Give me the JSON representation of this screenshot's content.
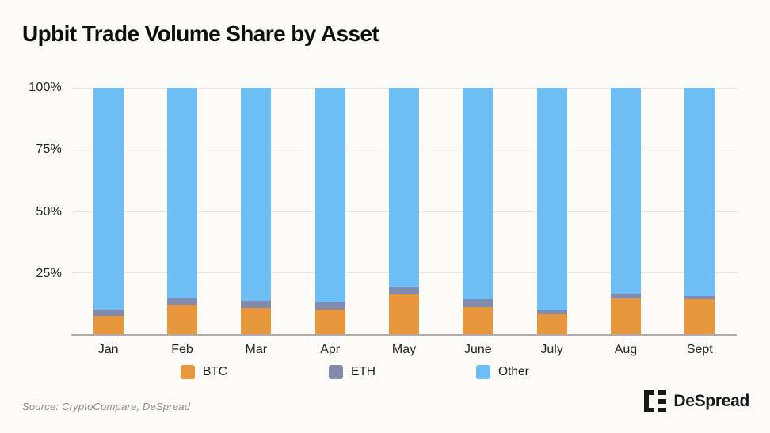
{
  "header": {
    "title": "Upbit Trade Volume Share by Asset"
  },
  "chart_data": {
    "type": "bar",
    "stacked": true,
    "stacking": "percent",
    "title": "Upbit Trade Volume Share by Asset",
    "categories": [
      "Jan",
      "Feb",
      "Mar",
      "Apr",
      "May",
      "June",
      "July",
      "Aug",
      "Sept"
    ],
    "series": [
      {
        "name": "BTC",
        "color": "#e9973d",
        "values": [
          7.5,
          12,
          10.5,
          10,
          16,
          11,
          8,
          14.5,
          14
        ]
      },
      {
        "name": "ETH",
        "color": "#828bad",
        "values": [
          2.5,
          2.5,
          3,
          3,
          3,
          3,
          1.5,
          2,
          1.5
        ]
      },
      {
        "name": "Other",
        "color": "#6dbef5",
        "values": [
          90,
          85.5,
          86.5,
          87,
          81,
          86,
          90.5,
          83.5,
          84.5
        ]
      }
    ],
    "y_ticks": [
      {
        "label": "100%",
        "value": 100
      },
      {
        "label": "75%",
        "value": 75
      },
      {
        "label": "50%",
        "value": 50
      },
      {
        "label": "25%",
        "value": 25
      }
    ],
    "ylim": [
      0,
      100
    ],
    "xlabel": "",
    "ylabel": "",
    "grid": true,
    "legend_position": "bottom"
  },
  "footer": {
    "source": "Source: CryptoCompare, DeSpread",
    "brand": "DeSpread"
  },
  "colors": {
    "background": "#fcfbf7",
    "gridline": "#e7e6e2",
    "axis_line": "#acacaa",
    "text": "#1c1c1c",
    "muted_text": "#8c8c8c"
  }
}
